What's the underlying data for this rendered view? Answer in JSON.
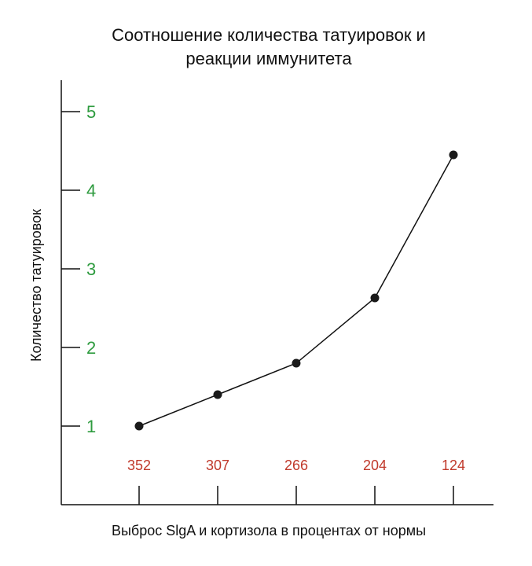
{
  "chart_data": {
    "type": "line",
    "title_lines": [
      "Соотношение количества татуировок и",
      "реакции иммунитета"
    ],
    "xlabel": "Выброс SlgA и кортизола в процентах от нормы",
    "ylabel": "Количество татуировок",
    "categories": [
      "352",
      "307",
      "266",
      "204",
      "124"
    ],
    "y_ticks": [
      "1",
      "2",
      "3",
      "4",
      "5"
    ],
    "ylim": [
      0,
      5
    ],
    "series": [
      {
        "values": [
          1.0,
          1.4,
          1.8,
          2.63,
          4.45
        ]
      }
    ],
    "grid": false,
    "colors": {
      "y_tick_labels": "#2e9b3f",
      "x_tick_labels": "#c0392b",
      "line": "#111111",
      "markers": "#1a1a1a",
      "axes": "#111111"
    }
  }
}
